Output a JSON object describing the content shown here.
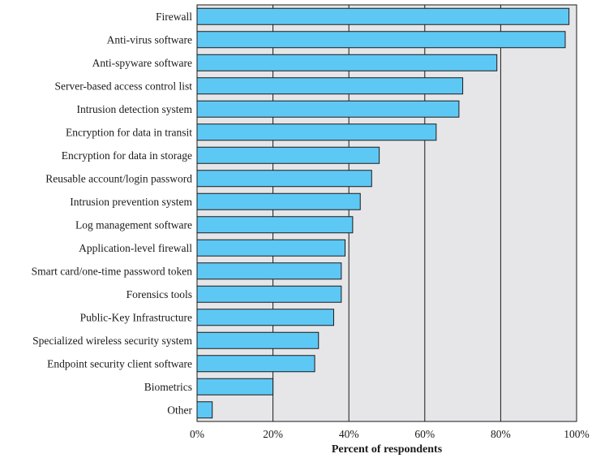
{
  "chart_data": {
    "type": "bar",
    "orientation": "horizontal",
    "categories": [
      "Firewall",
      "Anti-virus software",
      "Anti-spyware software",
      "Server-based access control list",
      "Intrusion detection system",
      "Encryption for data in transit",
      "Encryption for data in storage",
      "Reusable account/login password",
      "Intrusion prevention system",
      "Log management software",
      "Application-level firewall",
      "Smart card/one-time password token",
      "Forensics tools",
      "Public-Key Infrastructure",
      "Specialized wireless security system",
      "Endpoint security client software",
      "Biometrics",
      "Other"
    ],
    "values": [
      98,
      97,
      79,
      70,
      69,
      63,
      48,
      46,
      43,
      41,
      39,
      38,
      38,
      36,
      32,
      31,
      20,
      4
    ],
    "xlabel": "Percent of respondents",
    "xlim": [
      0,
      100
    ],
    "xticks": [
      "0%",
      "20%",
      "40%",
      "60%",
      "80%",
      "100%"
    ],
    "xtick_values": [
      0,
      20,
      40,
      60,
      80,
      100
    ],
    "grid": true,
    "colors": {
      "bar_fill": "#5ec8f5",
      "bar_stroke": "#1a1a1a",
      "plot_background": "#e6e6e8",
      "gridline": "#1a1a1a"
    }
  }
}
